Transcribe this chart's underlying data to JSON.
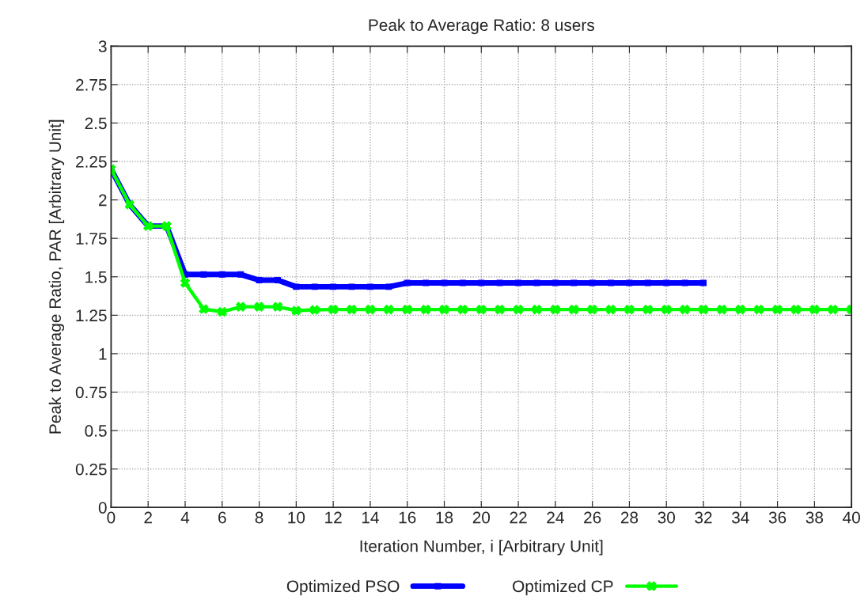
{
  "chart_data": {
    "type": "line",
    "title": "Peak to Average Ratio: 8 users",
    "xlabel": "Iteration Number, i [Arbitrary Unit]",
    "ylabel": "Peak to Average Ratio, PAR [Arbitrary Unit]",
    "series": [
      {
        "name": "Optimized PSO",
        "color": "#0000ff",
        "marker": "square",
        "x": [
          0,
          1,
          2,
          3,
          4,
          5,
          6,
          7,
          8,
          9,
          10,
          11,
          12,
          13,
          14,
          15,
          16,
          17,
          18,
          19,
          20,
          21,
          22,
          23,
          24,
          25,
          26,
          27,
          28,
          29,
          30,
          31,
          32
        ],
        "values": [
          2.2,
          1.97,
          1.83,
          1.83,
          1.515,
          1.515,
          1.515,
          1.515,
          1.478,
          1.478,
          1.435,
          1.435,
          1.435,
          1.435,
          1.435,
          1.435,
          1.46,
          1.46,
          1.46,
          1.46,
          1.46,
          1.46,
          1.46,
          1.46,
          1.46,
          1.46,
          1.46,
          1.46,
          1.46,
          1.46,
          1.46,
          1.46,
          1.46
        ]
      },
      {
        "name": "Optimized CP",
        "color": "#00ff00",
        "marker": "cross",
        "x": [
          0,
          1,
          2,
          3,
          4,
          5,
          6,
          7,
          8,
          9,
          10,
          11,
          12,
          13,
          14,
          15,
          16,
          17,
          18,
          19,
          20,
          21,
          22,
          23,
          24,
          25,
          26,
          27,
          28,
          29,
          30,
          31,
          32,
          33,
          34,
          35,
          36,
          37,
          38,
          39,
          40
        ],
        "values": [
          2.2,
          1.97,
          1.83,
          1.83,
          1.46,
          1.29,
          1.272,
          1.305,
          1.305,
          1.305,
          1.28,
          1.285,
          1.287,
          1.287,
          1.287,
          1.287,
          1.287,
          1.287,
          1.287,
          1.287,
          1.287,
          1.287,
          1.287,
          1.287,
          1.287,
          1.287,
          1.287,
          1.287,
          1.287,
          1.287,
          1.287,
          1.287,
          1.287,
          1.287,
          1.287,
          1.287,
          1.287,
          1.287,
          1.287,
          1.287,
          1.287
        ]
      }
    ],
    "xlim": [
      0,
      40
    ],
    "xticks": [
      0,
      2,
      4,
      6,
      8,
      10,
      12,
      14,
      16,
      18,
      20,
      22,
      24,
      26,
      28,
      30,
      32,
      34,
      36,
      38,
      40
    ],
    "ylim": [
      0,
      3
    ],
    "yticks": [
      0,
      0.25,
      0.5,
      0.75,
      1,
      1.25,
      1.5,
      1.75,
      2,
      2.25,
      2.5,
      2.75,
      3
    ],
    "grid": true,
    "legend": "bottom",
    "line_style": "solid"
  }
}
